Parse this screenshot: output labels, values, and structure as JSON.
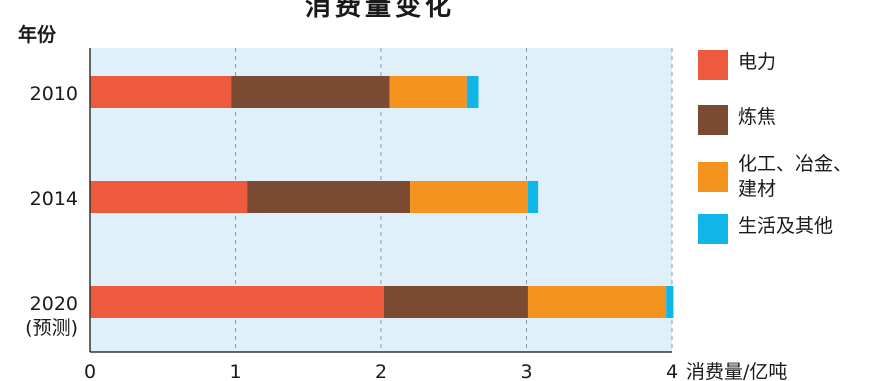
{
  "colors": {
    "plot_background": "#dff0fa",
    "grid": "#8a9aa8",
    "axis": "#333333"
  },
  "chart_data": {
    "type": "bar",
    "orientation": "horizontal",
    "stacked": true,
    "title": "消费量变化",
    "ylabel": "年份",
    "xlabel": "消费量/亿吨",
    "xlim": [
      0,
      4
    ],
    "x_ticks": [
      "0",
      "1",
      "2",
      "3",
      "4"
    ],
    "categories": [
      "2010",
      "2014",
      "2020\n(预测)"
    ],
    "grid": true,
    "legend_position": "right",
    "series": [
      {
        "name": "电力",
        "color": "#ee5a3e",
        "values": [
          0.97,
          1.08,
          2.02
        ]
      },
      {
        "name": "炼焦",
        "color": "#7b4a33",
        "values": [
          1.09,
          1.12,
          0.99
        ]
      },
      {
        "name": "化工、冶金、\n建材",
        "color": "#f4941e",
        "values": [
          0.53,
          0.81,
          0.95
        ]
      },
      {
        "name": "生活及其他",
        "color": "#11b6e8",
        "values": [
          0.08,
          0.07,
          0.05
        ]
      }
    ]
  }
}
